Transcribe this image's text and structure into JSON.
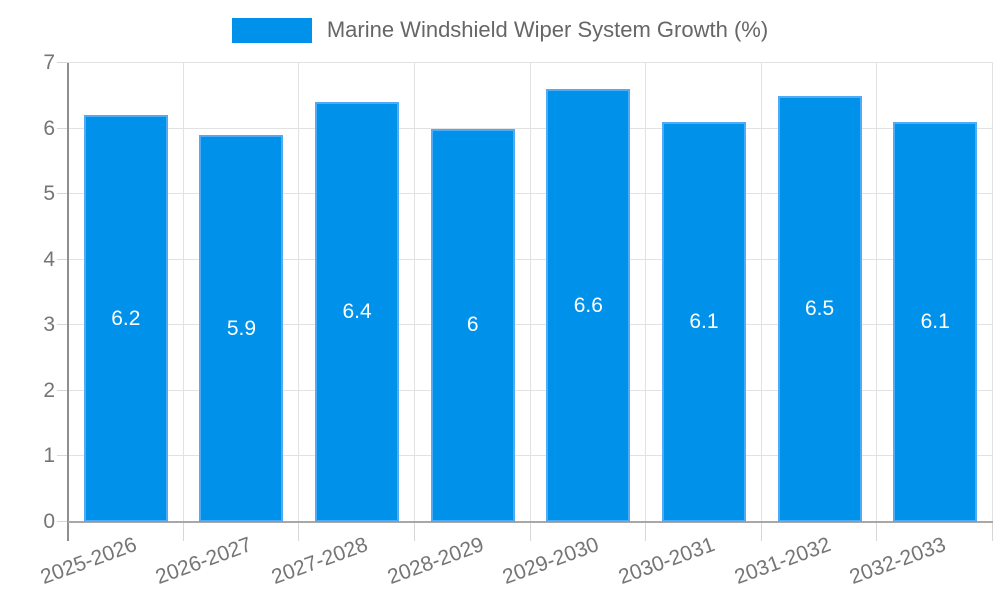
{
  "chart_data": {
    "type": "bar",
    "title": "Marine Windshield Wiper System Growth (%)",
    "legend": {
      "position": "top-center",
      "items": [
        {
          "label": "Marine Windshield Wiper System Growth (%)",
          "color": "#0091ea"
        }
      ]
    },
    "categories": [
      "2025-2026",
      "2026-2027",
      "2027-2028",
      "2028-2029",
      "2029-2030",
      "2030-2031",
      "2031-2032",
      "2032-2033"
    ],
    "values": [
      6.2,
      5.9,
      6.4,
      6,
      6.6,
      6.1,
      6.5,
      6.1
    ],
    "value_labels": [
      "6.2",
      "5.9",
      "6.4",
      "6",
      "6.6",
      "6.1",
      "6.5",
      "6.1"
    ],
    "xlabel": "",
    "ylabel": "",
    "ylim": [
      0,
      7
    ],
    "yticks": [
      0,
      1,
      2,
      3,
      4,
      5,
      6,
      7
    ],
    "ytick_labels": [
      "0",
      "1",
      "2",
      "3",
      "4",
      "5",
      "6",
      "7"
    ],
    "grid": true,
    "colors": {
      "bar_fill": "#0091ea",
      "bar_border": "#4fabf3",
      "gridline": "#e2e2e2",
      "y_axis_line": "#8f8f8f",
      "x_axis_line": "#a8a8a8",
      "tick_label_text": "#757575",
      "legend_text": "#666666",
      "value_label_text": "#ffffff",
      "background": "#ffffff"
    }
  }
}
